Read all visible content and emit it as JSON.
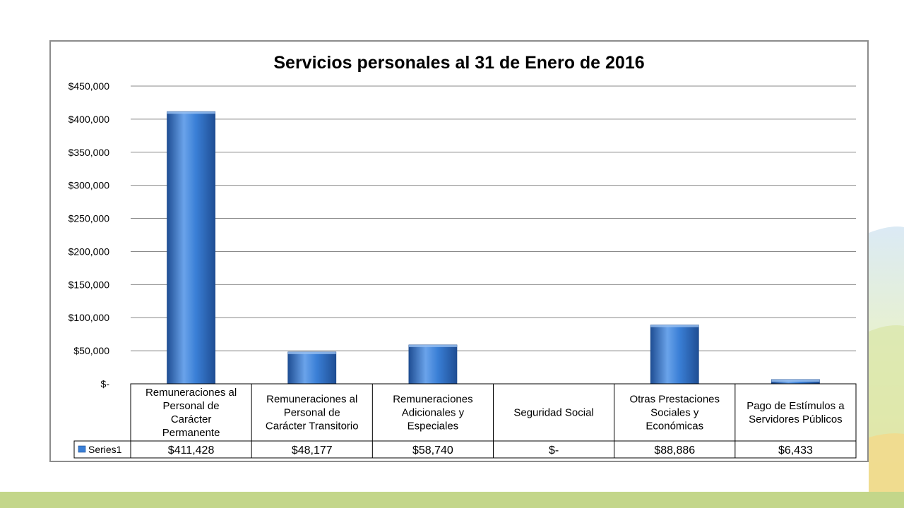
{
  "chart_data": {
    "type": "bar",
    "title": "Servicios personales al 31 de Enero de 2016",
    "categories": [
      "Remuneraciones al Personal de Carácter Permanente",
      "Remuneraciones al Personal de Carácter Transitorio",
      "Remuneraciones Adicionales y Especiales",
      "Seguridad Social",
      "Otras Prestaciones Sociales y Económicas",
      "Pago de Estímulos a Servidores Públicos"
    ],
    "category_lines": [
      [
        "Remuneraciones al",
        "Personal de",
        "Carácter",
        "Permanente"
      ],
      [
        "Remuneraciones al",
        "Personal de",
        "Carácter Transitorio"
      ],
      [
        "Remuneraciones",
        "Adicionales y",
        "Especiales"
      ],
      [
        "Seguridad Social"
      ],
      [
        "Otras Prestaciones",
        "Sociales y",
        "Económicas"
      ],
      [
        "Pago de Estímulos a",
        "Servidores Públicos"
      ]
    ],
    "series": [
      {
        "name": "Series1",
        "values": [
          411428,
          48177,
          58740,
          0,
          88886,
          6433
        ],
        "value_labels": [
          "$411,428",
          "$48,177",
          "$58,740",
          "$-",
          "$88,886",
          "$6,433"
        ]
      }
    ],
    "ylim": [
      0,
      450000
    ],
    "y_ticks": [
      0,
      50000,
      100000,
      150000,
      200000,
      250000,
      300000,
      350000,
      400000,
      450000
    ],
    "y_tick_labels": [
      "$-",
      "$50,000",
      "$100,000",
      "$150,000",
      "$200,000",
      "$250,000",
      "$300,000",
      "$350,000",
      "$400,000",
      "$450,000"
    ],
    "xlabel": "",
    "ylabel": "",
    "grid": true,
    "legend": "data-table",
    "colors": {
      "bar_light": "#6aa3ea",
      "bar_mid": "#3a7fd6",
      "bar_dark": "#1f4e94",
      "gridline": "#8a8a8a",
      "legend_key": "#3a7fd6"
    }
  }
}
